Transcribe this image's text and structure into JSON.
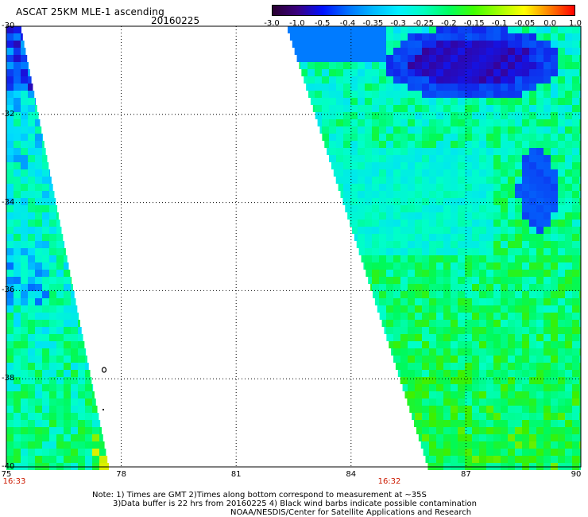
{
  "header": {
    "title": "ASCAT 25KM MLE-1 ascending",
    "date": "20160225"
  },
  "colorbar": {
    "labels": [
      "-3.0",
      "-1.0",
      "-0.5",
      "-0.4",
      "-0.35",
      "-0.3",
      "-0.25",
      "-0.2",
      "-0.15",
      "-0.1",
      "-0.05",
      "0.0",
      "1.0"
    ],
    "colors": [
      "#2a0030",
      "#3a0080",
      "#0010ff",
      "#0070ff",
      "#00b8ff",
      "#00f0ff",
      "#00ffc0",
      "#00ff60",
      "#40ff00",
      "#a0ff00",
      "#ffff00",
      "#ff8000",
      "#ff0000"
    ]
  },
  "axes": {
    "lat_labels": [
      "-30",
      "-32",
      "-34",
      "-36",
      "-38",
      "-40"
    ],
    "lon_labels": [
      "75",
      "78",
      "81",
      "84",
      "87",
      "90"
    ],
    "lat_range": [
      -40,
      -30
    ],
    "lon_range": [
      75,
      90
    ],
    "grid": "dotted"
  },
  "times": [
    {
      "label": "16:33",
      "lon": 75
    },
    {
      "label": "16:32",
      "lon": 85
    }
  ],
  "notes": {
    "line1": "Note: 1) Times are GMT 2)Times along bottom correspond to measurement at ~35S",
    "line2": "3)Data buffer is 22 hrs from 20160225 4) Black wind barbs indicate possible contamination",
    "line3": "NOAA/NESDIS/Center for Satellite Applications and Research"
  }
}
